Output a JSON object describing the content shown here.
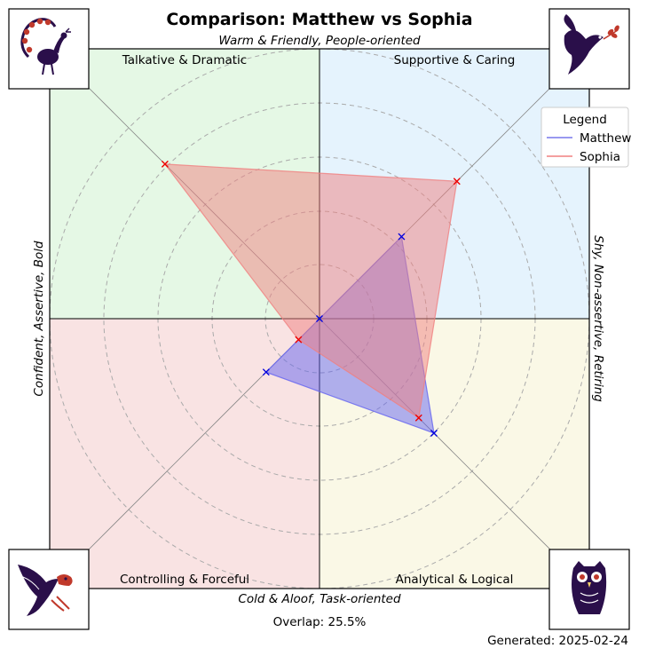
{
  "chart_data": {
    "type": "radar",
    "title": "Comparison: Matthew vs Sophia",
    "axis_labels": {
      "top": "Warm & Friendly, People-oriented",
      "bottom": "Cold & Aloof, Task-oriented",
      "left": "Confident, Assertive, Bold",
      "right": "Shy, Non-assertive, Retiring"
    },
    "quadrants": {
      "top_left": "Talkative & Dramatic",
      "top_right": "Supportive & Caring",
      "bottom_left": "Controlling & Forceful",
      "bottom_right": "Analytical & Logical"
    },
    "quadrant_colors": {
      "top_left": "#e5f8e5",
      "top_right": "#e5f3fd",
      "bottom_left": "#f9e3e3",
      "bottom_right": "#faf8e6"
    },
    "axes": [
      "Talkative & Dramatic",
      "Supportive & Caring",
      "Analytical & Logical",
      "Controlling & Forceful"
    ],
    "grid": true,
    "series": [
      {
        "name": "Matthew",
        "color": "#6464f0",
        "marker_color": "#0000dd",
        "values": [
          0.0,
          0.43,
          0.6,
          0.28
        ]
      },
      {
        "name": "Sophia",
        "color": "#f08080",
        "marker_color": "#ee0000",
        "values": [
          0.81,
          0.72,
          0.52,
          0.11
        ]
      }
    ],
    "legend": {
      "title": "Legend",
      "position": "top-right"
    },
    "overlap_text": "Overlap: 25.5%",
    "generated_text": "Generated: 2025-02-24",
    "icons": {
      "top_left": "peacock-icon",
      "top_right": "dove-icon",
      "bottom_left": "eagle-icon",
      "bottom_right": "owl-icon"
    }
  }
}
